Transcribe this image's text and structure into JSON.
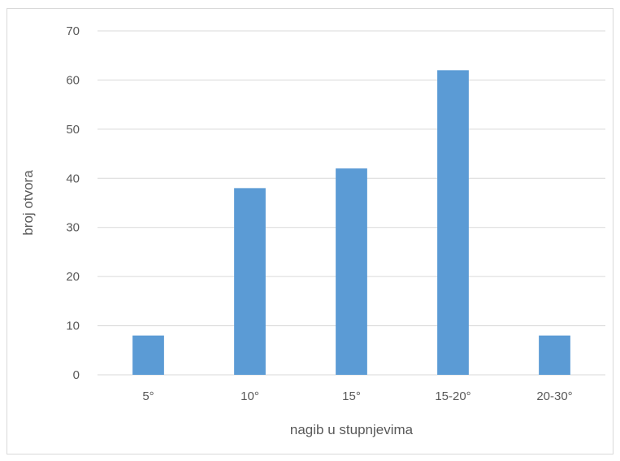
{
  "chart_data": {
    "type": "bar",
    "title": "",
    "categories": [
      "5°",
      "10°",
      "15°",
      "15-20°",
      "20-30°"
    ],
    "values": [
      8,
      38,
      42,
      62,
      8
    ],
    "xlabel": "nagib u stupnjevima",
    "ylabel": "broj otvora",
    "ylim": [
      0,
      70
    ],
    "yticks": [
      0,
      10,
      20,
      30,
      40,
      50,
      60,
      70
    ],
    "grid": true,
    "legend": "none",
    "bar_color": "#5b9bd5",
    "grid_color": "#d9d9d9",
    "text_color": "#595959"
  }
}
